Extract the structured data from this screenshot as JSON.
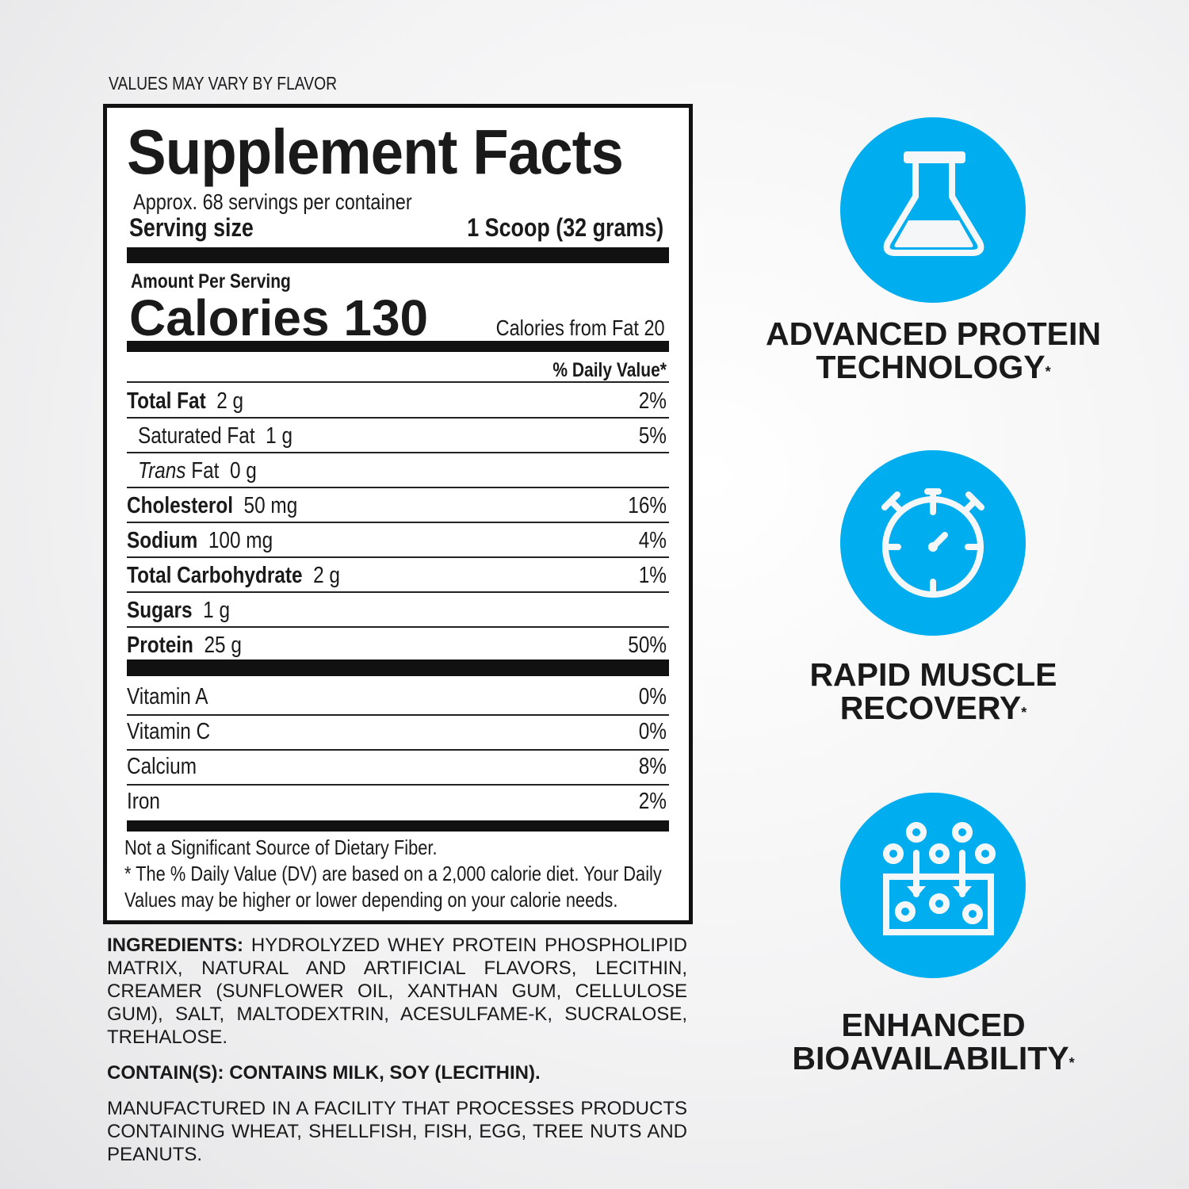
{
  "note": "VALUES MAY VARY BY FLAVOR",
  "facts": {
    "title": "Supplement Facts",
    "servings": "Approx. 68 servings per container",
    "serving_size_label": "Serving size",
    "serving_size_value": "1 Scoop (32 grams)",
    "amount_per_serving": "Amount Per Serving",
    "calories_label": "Calories",
    "calories_value": "130",
    "calories_from_fat": "Calories from Fat 20",
    "dv_header": "% Daily Value*",
    "nutrients": [
      {
        "name": "Total Fat",
        "amount": "2 g",
        "dv": "2%"
      },
      {
        "name": "Saturated Fat",
        "amount": "1 g",
        "dv": "5%"
      },
      {
        "name": "Trans",
        "name2": "Fat",
        "amount": "0 g",
        "dv": ""
      },
      {
        "name": "Cholesterol",
        "amount": "50 mg",
        "dv": "16%"
      },
      {
        "name": "Sodium",
        "amount": "100 mg",
        "dv": "4%"
      },
      {
        "name": "Total Carbohydrate",
        "amount": "2 g",
        "dv": "1%"
      },
      {
        "name": "Sugars",
        "amount": "1 g",
        "dv": ""
      },
      {
        "name": "Protein",
        "amount": "25 g",
        "dv": "50%"
      }
    ],
    "vitamins": [
      {
        "name": "Vitamin A",
        "dv": "0%"
      },
      {
        "name": "Vitamin C",
        "dv": "0%"
      },
      {
        "name": "Calcium",
        "dv": "8%"
      },
      {
        "name": "Iron",
        "dv": "2%"
      }
    ],
    "footnotes": [
      "Not a Significant Source of Dietary Fiber.",
      "* The % Daily Value (DV) are based on a 2,000 calorie diet. Your Daily",
      "Values may be higher or lower depending on your calorie needs."
    ]
  },
  "ingredients": {
    "label": "INGREDIENTS:",
    "text": " HYDROLYZED WHEY PROTEIN PHOSPHOLIPID MATRIX, NATURAL AND ARTIFICIAL FLAVORS, LECITHIN, CREAMER (SUNFLOWER OIL, XANTHAN GUM, CELLULOSE GUM), SALT, MALTODEXTRIN, ACESULFAME-K, SUCRALOSE, TREHALOSE.",
    "contains": "CONTAIN(S): CONTAINS MILK, SOY (LECITHIN).",
    "facility": "MANUFACTURED IN A FACILITY THAT PROCESSES PRODUCTS CONTAINING WHEAT, SHELLFISH, FISH, EGG, TREE NUTS AND PEANUTS."
  },
  "features": [
    {
      "line1": "ADVANCED PROTEIN",
      "line2": "TECHNOLOGY",
      "mark": "*",
      "icon": "flask-icon"
    },
    {
      "line1": "RAPID MUSCLE",
      "line2": "RECOVERY",
      "mark": "*",
      "icon": "stopwatch-icon"
    },
    {
      "line1": "ENHANCED",
      "line2": "BIOAVAILABILITY",
      "mark": "*",
      "icon": "absorption-icon"
    }
  ],
  "colors": {
    "accent": "#00aeef",
    "ink": "#111111"
  }
}
